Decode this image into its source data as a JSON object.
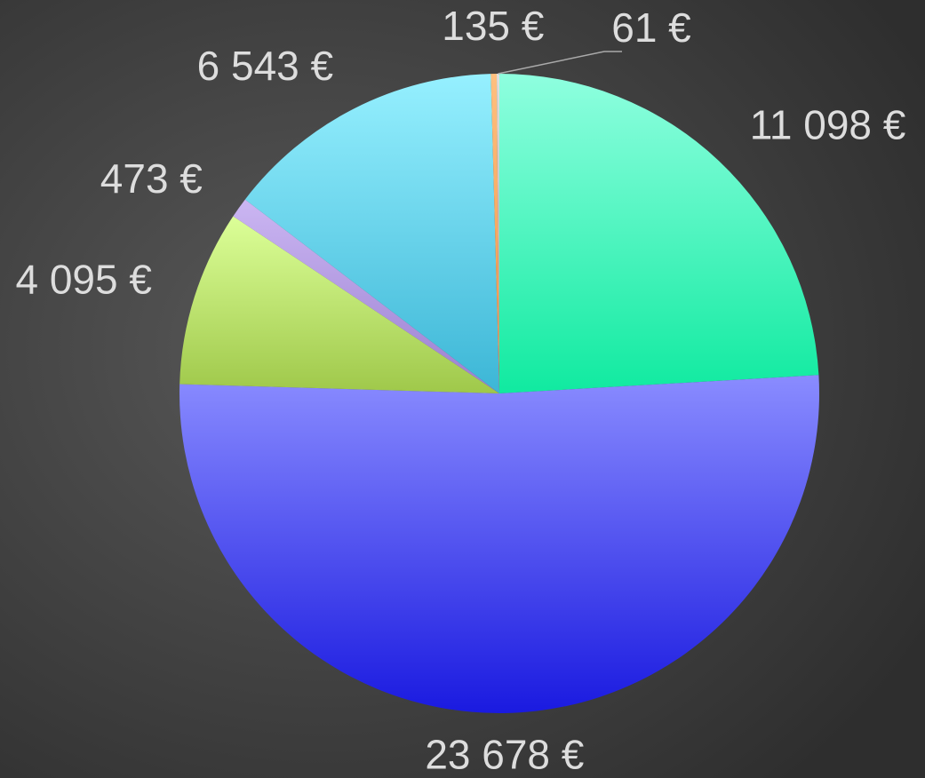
{
  "chart_data": {
    "type": "pie",
    "values": [
      11098,
      23678,
      4095,
      473,
      6543,
      135,
      61
    ],
    "value_labels": [
      "11 098 €",
      "23 678 €",
      "4 095 €",
      "473 €",
      "6 543 €",
      "135 €",
      "61 €"
    ],
    "colors": [
      [
        "#8fffdf",
        "#10eaa0"
      ],
      [
        "#8a8cff",
        "#1a1ae0"
      ],
      [
        "#dcff98",
        "#9fc84a"
      ],
      [
        "#cbb6f2",
        "#9a7fd0"
      ],
      [
        "#96f0ff",
        "#3cb6d6"
      ],
      [
        "#ffc080",
        "#f09040"
      ],
      [
        "#e0e0e0",
        "#a0a0a0"
      ]
    ]
  }
}
